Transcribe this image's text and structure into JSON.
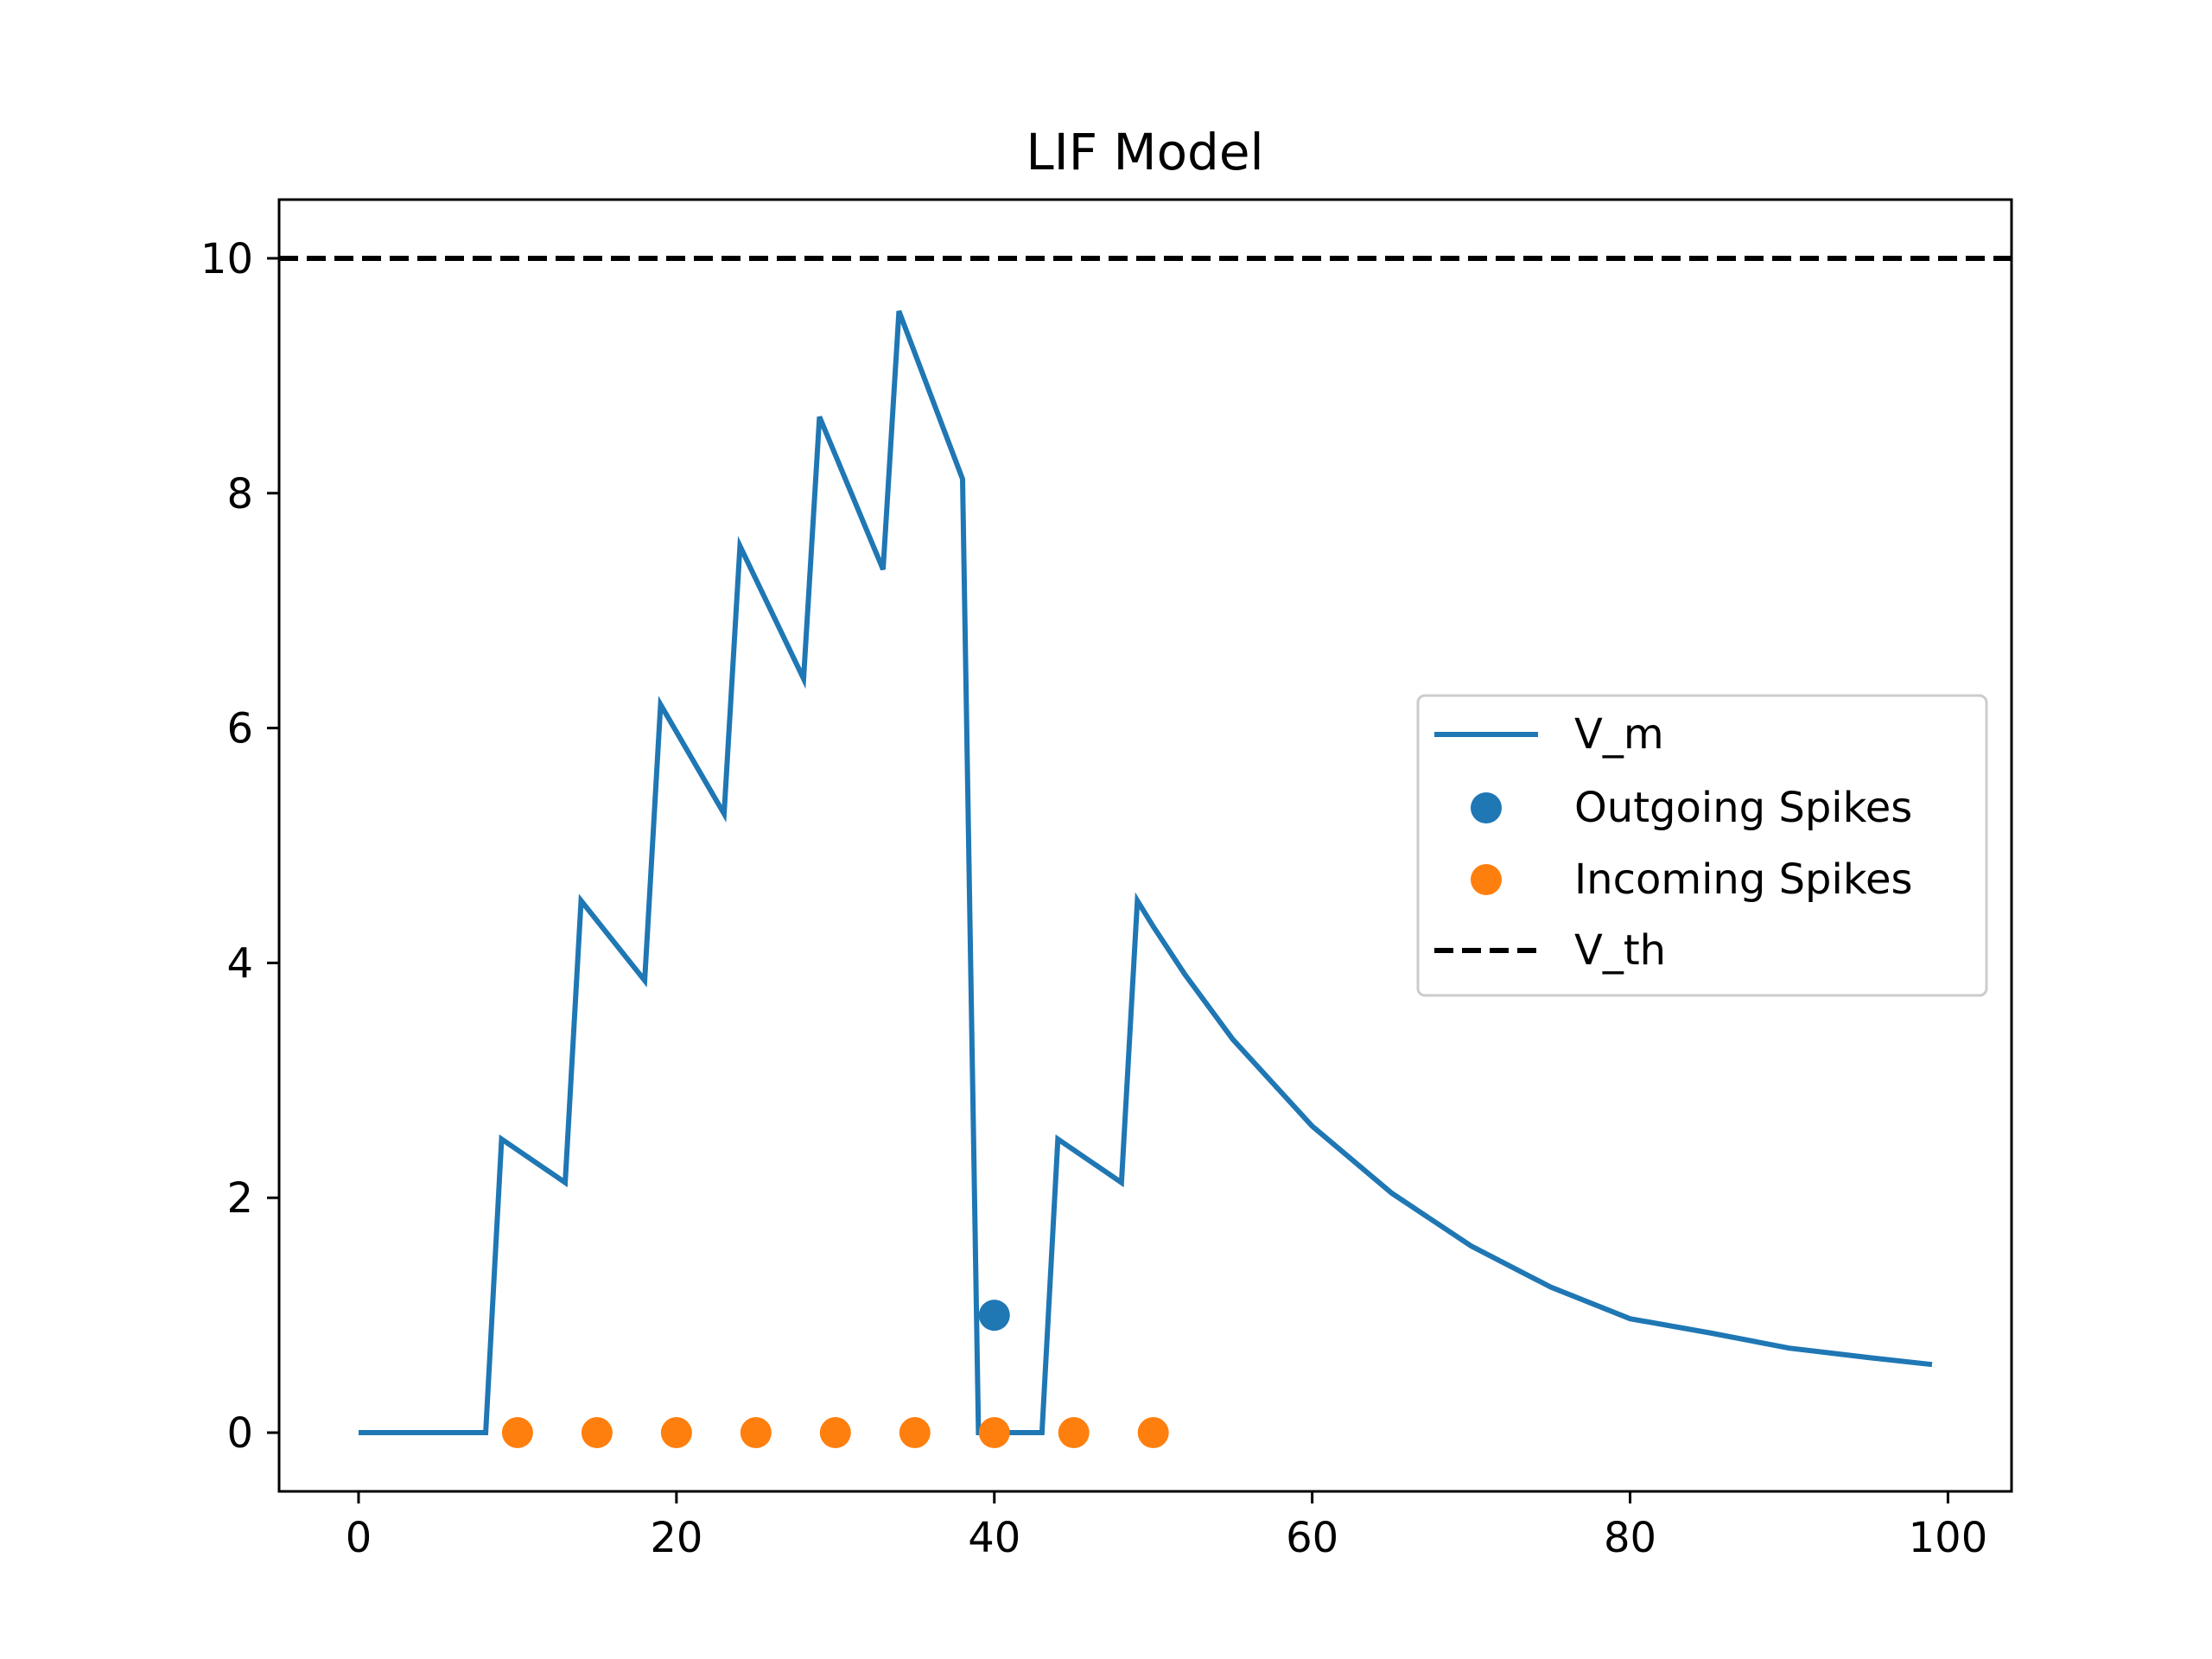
{
  "chart_data": {
    "type": "line",
    "title": "LIF Model",
    "xlabel": "",
    "ylabel": "",
    "xlim": [
      -5,
      104
    ],
    "ylim": [
      -0.5,
      10.5
    ],
    "xticks": [
      0,
      20,
      40,
      60,
      80,
      100
    ],
    "yticks": [
      0,
      2,
      4,
      6,
      8,
      10
    ],
    "grid": false,
    "legend_position": "center-right",
    "series": [
      {
        "name": "V_m",
        "kind": "line",
        "color": "#1f77b4",
        "x": [
          0,
          8,
          9,
          13,
          14,
          18,
          19,
          23,
          24,
          28,
          29,
          33,
          34,
          38,
          39,
          43,
          44,
          48,
          49,
          50,
          52,
          55,
          60,
          65,
          70,
          75,
          80,
          85,
          90,
          95,
          99
        ],
        "y": [
          0,
          0,
          2.5,
          2.13,
          4.53,
          3.85,
          6.2,
          5.27,
          7.55,
          6.42,
          8.65,
          7.35,
          9.55,
          8.12,
          0,
          0,
          2.5,
          2.13,
          4.53,
          4.31,
          3.9,
          3.35,
          2.61,
          2.04,
          1.59,
          1.24,
          0.97,
          0.85,
          0.72,
          0.64,
          0.58
        ]
      },
      {
        "name": "Outgoing Spikes",
        "kind": "scatter",
        "color": "#1f77b4",
        "x": [
          40
        ],
        "y": [
          1
        ]
      },
      {
        "name": "Incoming Spikes",
        "kind": "scatter",
        "color": "#ff7f0e",
        "x": [
          10,
          15,
          20,
          25,
          30,
          35,
          40,
          45,
          50
        ],
        "y": [
          0,
          0,
          0,
          0,
          0,
          0,
          0,
          0,
          0
        ]
      },
      {
        "name": "V_th",
        "kind": "hline",
        "color": "#000000",
        "dashed": true,
        "y": 10
      }
    ]
  }
}
